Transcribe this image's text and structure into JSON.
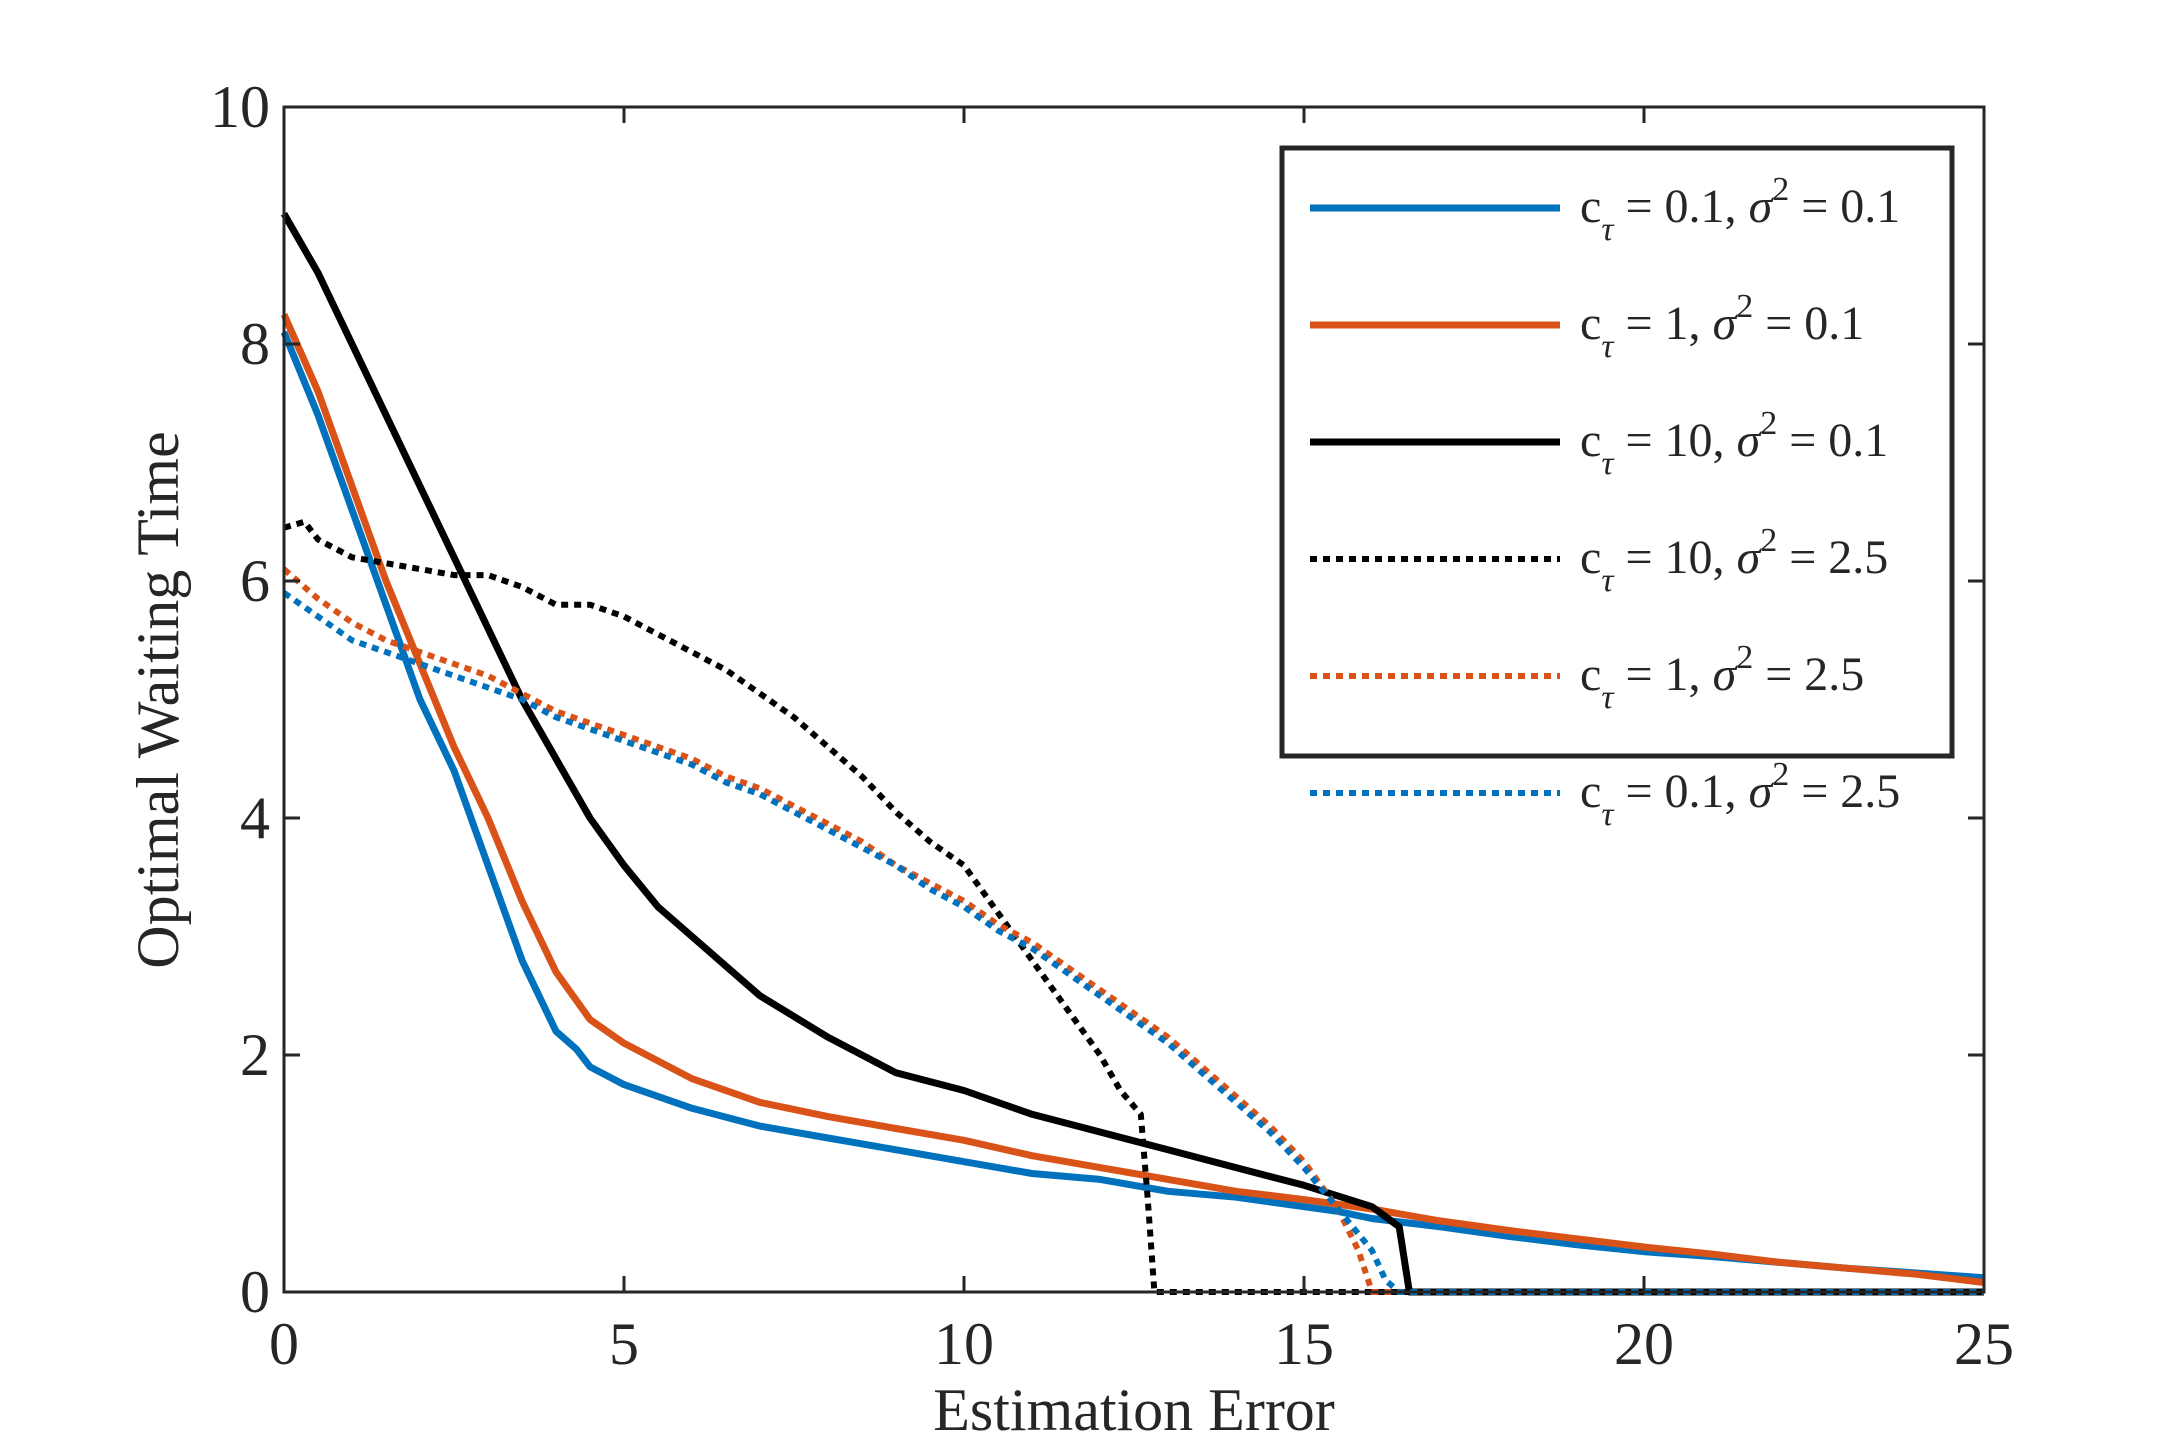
{
  "chart_data": {
    "type": "line",
    "xlabel": "Estimation Error",
    "ylabel": "Optimal Waiting Time",
    "xlim": [
      0,
      25
    ],
    "ylim": [
      0,
      10
    ],
    "xticks": [
      "0",
      "5",
      "10",
      "15",
      "20",
      "25"
    ],
    "yticks": [
      "0",
      "2",
      "4",
      "6",
      "8",
      "10"
    ],
    "grid": false,
    "legend_position": "top-right",
    "legend": [
      {
        "main": "c",
        "sub": "τ",
        "rest": " = 0.1, ",
        "sigma": "σ",
        "sup": "2",
        "tail": " = 0.1"
      },
      {
        "main": "c",
        "sub": "τ",
        "rest": " = 1, ",
        "sigma": "σ",
        "sup": "2",
        "tail": " = 0.1"
      },
      {
        "main": "c",
        "sub": "τ",
        "rest": " = 10, ",
        "sigma": "σ",
        "sup": "2",
        "tail": " = 0.1"
      },
      {
        "main": "c",
        "sub": "τ",
        "rest": " = 10, ",
        "sigma": "σ",
        "sup": "2",
        "tail": " = 2.5"
      },
      {
        "main": "c",
        "sub": "τ",
        "rest": " = 1, ",
        "sigma": "σ",
        "sup": "2",
        "tail": " = 2.5"
      },
      {
        "main": "c",
        "sub": "τ",
        "rest": " = 0.1, ",
        "sigma": "σ",
        "sup": "2",
        "tail": " = 2.5"
      }
    ],
    "series": [
      {
        "color": "#0072BD",
        "dash": "solid",
        "x": [
          0,
          0.5,
          1,
          1.5,
          2,
          2.5,
          3,
          3.5,
          4,
          4.3,
          4.5,
          5,
          6,
          7,
          8,
          9,
          10,
          11,
          12,
          13,
          14,
          15,
          15.5,
          16,
          17,
          18,
          19,
          20,
          21,
          22,
          23,
          24,
          25
        ],
        "y": [
          8.1,
          7.4,
          6.6,
          5.8,
          5.0,
          4.4,
          3.6,
          2.8,
          2.2,
          2.05,
          1.9,
          1.75,
          1.55,
          1.4,
          1.3,
          1.2,
          1.1,
          1.0,
          0.95,
          0.85,
          0.8,
          0.72,
          0.68,
          0.62,
          0.55,
          0.47,
          0.4,
          0.34,
          0.3,
          0.25,
          0.2,
          0.16,
          0.12
        ]
      },
      {
        "color": "#D95319",
        "dash": "solid",
        "x": [
          0,
          0.5,
          1,
          1.5,
          2,
          2.5,
          3,
          3.5,
          4,
          4.5,
          5,
          6,
          7,
          8,
          9,
          10,
          11,
          12,
          13,
          14,
          15,
          16,
          17,
          18,
          19,
          20,
          21,
          22,
          23,
          24,
          25
        ],
        "y": [
          8.25,
          7.6,
          6.8,
          6.0,
          5.3,
          4.6,
          4.0,
          3.3,
          2.7,
          2.3,
          2.1,
          1.8,
          1.6,
          1.48,
          1.38,
          1.28,
          1.15,
          1.05,
          0.95,
          0.85,
          0.78,
          0.7,
          0.6,
          0.52,
          0.45,
          0.38,
          0.32,
          0.25,
          0.2,
          0.15,
          0.08
        ]
      },
      {
        "color": "#000000",
        "dash": "solid",
        "x": [
          0,
          0.5,
          1,
          1.5,
          2,
          2.5,
          3,
          3.5,
          4,
          4.5,
          5,
          5.5,
          6,
          7,
          8,
          9,
          10,
          11,
          12,
          13,
          14,
          15,
          16,
          16.4,
          16.55,
          17,
          18,
          20,
          22,
          25
        ],
        "y": [
          9.1,
          8.6,
          8.0,
          7.4,
          6.8,
          6.2,
          5.6,
          5.0,
          4.5,
          4.0,
          3.6,
          3.25,
          3.0,
          2.5,
          2.15,
          1.85,
          1.7,
          1.5,
          1.35,
          1.2,
          1.05,
          0.9,
          0.72,
          0.55,
          0.0,
          0.0,
          0.0,
          0.0,
          0.0,
          0.0
        ]
      },
      {
        "color": "#000000",
        "dash": "dotted",
        "x": [
          0,
          0.3,
          0.5,
          1,
          1.5,
          2,
          2.5,
          3,
          3.5,
          4,
          4.5,
          5,
          5.5,
          6,
          6.5,
          7,
          7.5,
          8,
          8.5,
          9,
          9.5,
          10,
          10.5,
          11,
          11.5,
          12,
          12.3,
          12.6,
          12.7,
          12.8,
          13,
          14,
          16,
          18,
          20,
          22,
          25
        ],
        "y": [
          6.45,
          6.5,
          6.35,
          6.2,
          6.15,
          6.1,
          6.05,
          6.05,
          5.95,
          5.8,
          5.8,
          5.7,
          5.55,
          5.4,
          5.25,
          5.05,
          4.85,
          4.6,
          4.35,
          4.05,
          3.8,
          3.6,
          3.2,
          2.8,
          2.4,
          2.0,
          1.7,
          1.5,
          0.8,
          0.0,
          0.0,
          0.0,
          0.0,
          0.0,
          0.0,
          0.0,
          0.0
        ]
      },
      {
        "color": "#D95319",
        "dash": "dotted",
        "x": [
          0,
          0.5,
          1,
          1.5,
          2,
          2.5,
          3,
          3.5,
          4,
          4.5,
          5,
          5.5,
          6,
          6.5,
          7,
          7.5,
          8,
          8.5,
          9,
          9.5,
          10,
          10.5,
          11,
          11.5,
          12,
          12.5,
          13,
          13.5,
          14,
          14.5,
          15,
          15.5,
          15.8,
          16.0,
          16.2,
          17,
          18,
          20,
          22,
          25
        ],
        "y": [
          6.1,
          5.85,
          5.65,
          5.5,
          5.4,
          5.3,
          5.2,
          5.05,
          4.9,
          4.8,
          4.7,
          4.6,
          4.5,
          4.35,
          4.25,
          4.1,
          3.95,
          3.8,
          3.6,
          3.45,
          3.3,
          3.1,
          2.95,
          2.75,
          2.55,
          2.35,
          2.15,
          1.9,
          1.65,
          1.4,
          1.1,
          0.7,
          0.35,
          0.0,
          0.0,
          0.0,
          0.0,
          0.0,
          0.0,
          0.0
        ]
      },
      {
        "color": "#0072BD",
        "dash": "dotted",
        "x": [
          0,
          0.5,
          1,
          1.5,
          2,
          2.5,
          3,
          3.5,
          4,
          4.5,
          5,
          5.5,
          6,
          6.5,
          7,
          7.5,
          8,
          8.5,
          9,
          9.5,
          10,
          10.5,
          11,
          11.5,
          12,
          12.5,
          13,
          13.5,
          14,
          14.5,
          15,
          15.5,
          16,
          16.2,
          16.4,
          17,
          18,
          20,
          22,
          25
        ],
        "y": [
          5.9,
          5.7,
          5.5,
          5.4,
          5.3,
          5.2,
          5.1,
          5.0,
          4.85,
          4.75,
          4.65,
          4.55,
          4.45,
          4.3,
          4.2,
          4.05,
          3.9,
          3.75,
          3.6,
          3.4,
          3.25,
          3.05,
          2.9,
          2.7,
          2.5,
          2.3,
          2.1,
          1.85,
          1.6,
          1.35,
          1.05,
          0.7,
          0.35,
          0.1,
          0.0,
          0.0,
          0.0,
          0.0,
          0.0,
          0.0
        ]
      }
    ]
  }
}
